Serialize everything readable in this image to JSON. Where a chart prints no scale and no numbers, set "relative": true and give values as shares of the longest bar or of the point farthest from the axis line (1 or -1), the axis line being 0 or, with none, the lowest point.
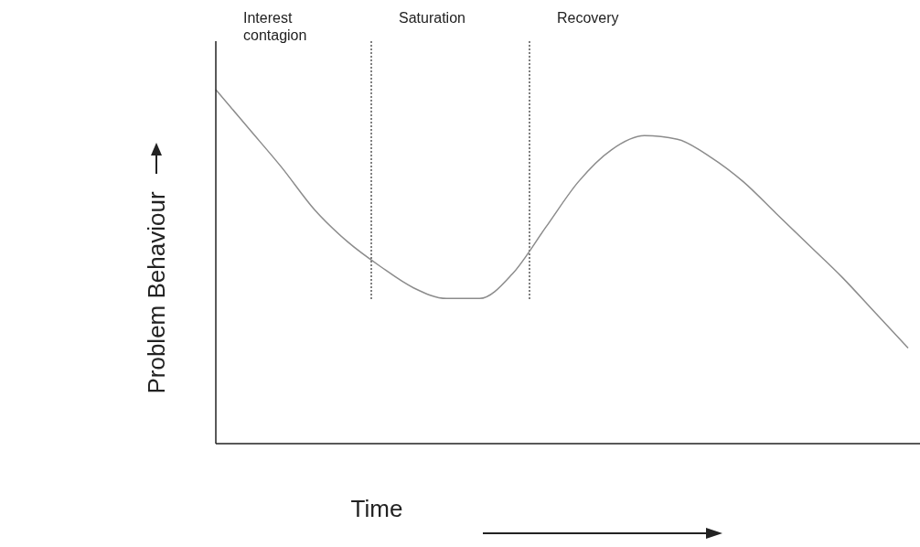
{
  "chart_data": {
    "type": "line",
    "relative": true,
    "xlabel": "Time",
    "ylabel": "Problem Behaviour",
    "color": "#8c8c8c",
    "categories": [
      null,
      null,
      null,
      null,
      null,
      null,
      null,
      null,
      null,
      null,
      null,
      null,
      null,
      null,
      null,
      null,
      null,
      null,
      null,
      null,
      null,
      null
    ],
    "values": [
      1.0,
      0.89,
      0.78,
      0.66,
      0.57,
      0.5,
      0.44,
      0.41,
      0.41,
      0.48,
      0.61,
      0.74,
      0.83,
      0.87,
      0.86,
      0.81,
      0.74,
      0.65,
      0.56,
      0.47,
      0.37,
      0.27
    ],
    "annotations": [
      "Interest\ncontagion",
      "Saturation",
      "Recovery"
    ],
    "marker": "none",
    "line_style": "solid"
  }
}
